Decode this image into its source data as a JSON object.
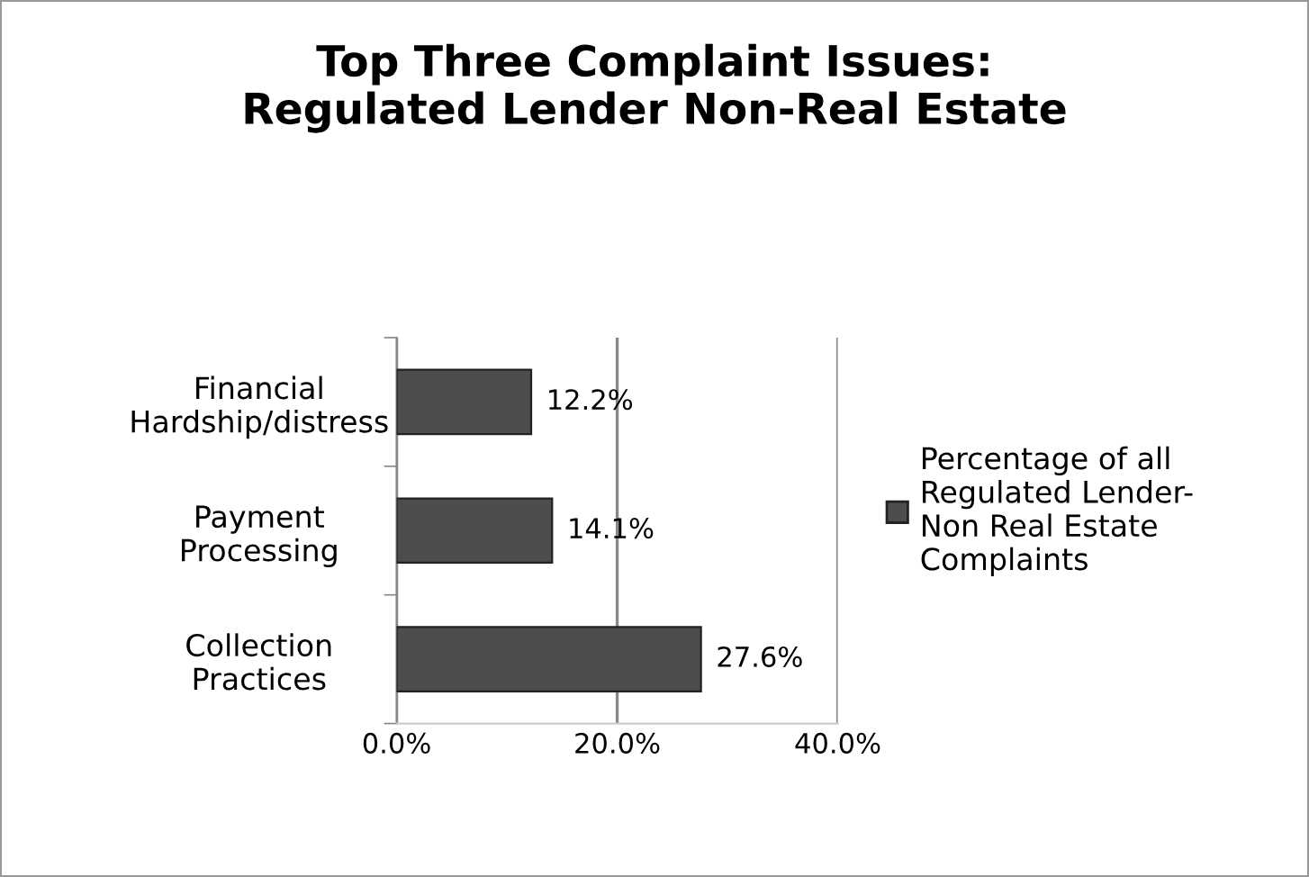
{
  "chart_data": {
    "type": "bar",
    "orientation": "horizontal",
    "title": "Top Three Complaint Issues:\nRegulated Lender Non-Real Estate",
    "categories": [
      "Financial\nHardship/distress",
      "Payment\nProcessing",
      "Collection\nPractices"
    ],
    "series": [
      {
        "name": "Percentage of all\nRegulated Lender-\nNon Real Estate\nComplaints",
        "color": "#4d4d4d",
        "values": [
          12.2,
          14.1,
          27.6
        ],
        "value_labels": [
          "12.2%",
          "14.1%",
          "27.6%"
        ]
      }
    ],
    "xlim": [
      0,
      40
    ],
    "xticks": [
      {
        "value": 0,
        "label": "0.0%"
      },
      {
        "value": 20,
        "label": "20.0%"
      },
      {
        "value": 40,
        "label": "40.0%"
      }
    ],
    "grid": "x",
    "legend": "right"
  }
}
